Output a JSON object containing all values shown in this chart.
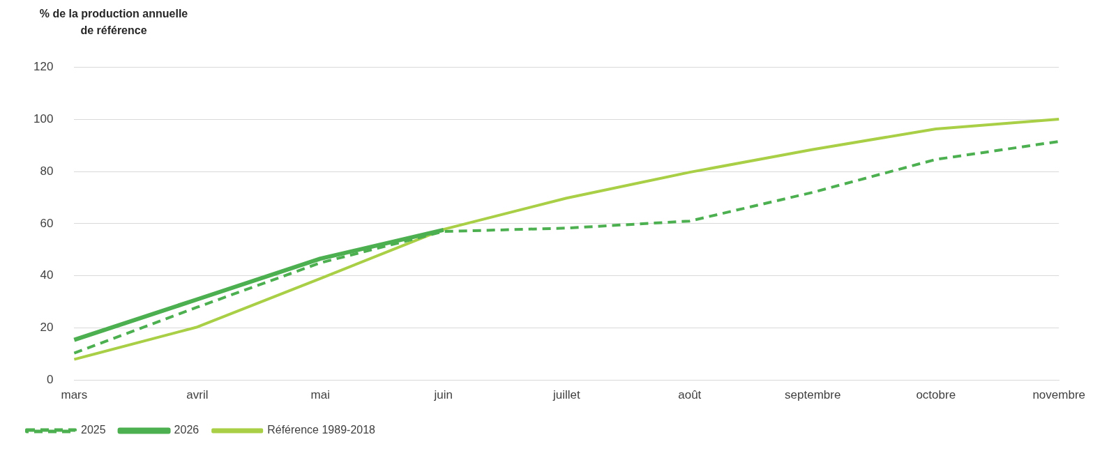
{
  "chart_data": {
    "type": "line",
    "ylabel": "% de la production annuelle de référence",
    "categories": [
      "mars",
      "avril",
      "mai",
      "juin",
      "juillet",
      "août",
      "septembre",
      "octobre",
      "novembre"
    ],
    "series": [
      {
        "name": "2025",
        "color": "#4caf50",
        "line_style": "dashed",
        "values": [
          10.4,
          28,
          45,
          57,
          58.3,
          61,
          72,
          84.6,
          91.5
        ]
      },
      {
        "name": "2026",
        "color": "#4caf50",
        "line_style": "solid",
        "values": [
          15.5,
          31,
          46.6,
          57.6,
          null,
          null,
          null,
          null,
          null
        ]
      },
      {
        "name": "Référence 1989-2018",
        "color": "#a8cf45",
        "line_style": "solid",
        "values": [
          8,
          20.4,
          39,
          57.8,
          69.8,
          79.7,
          88.4,
          96.3,
          100
        ]
      }
    ],
    "ylim": [
      0,
      120
    ],
    "yticks": [
      0,
      20,
      40,
      60,
      80,
      100,
      120
    ],
    "grid": "y",
    "legend": "bottom",
    "marker": "none"
  }
}
